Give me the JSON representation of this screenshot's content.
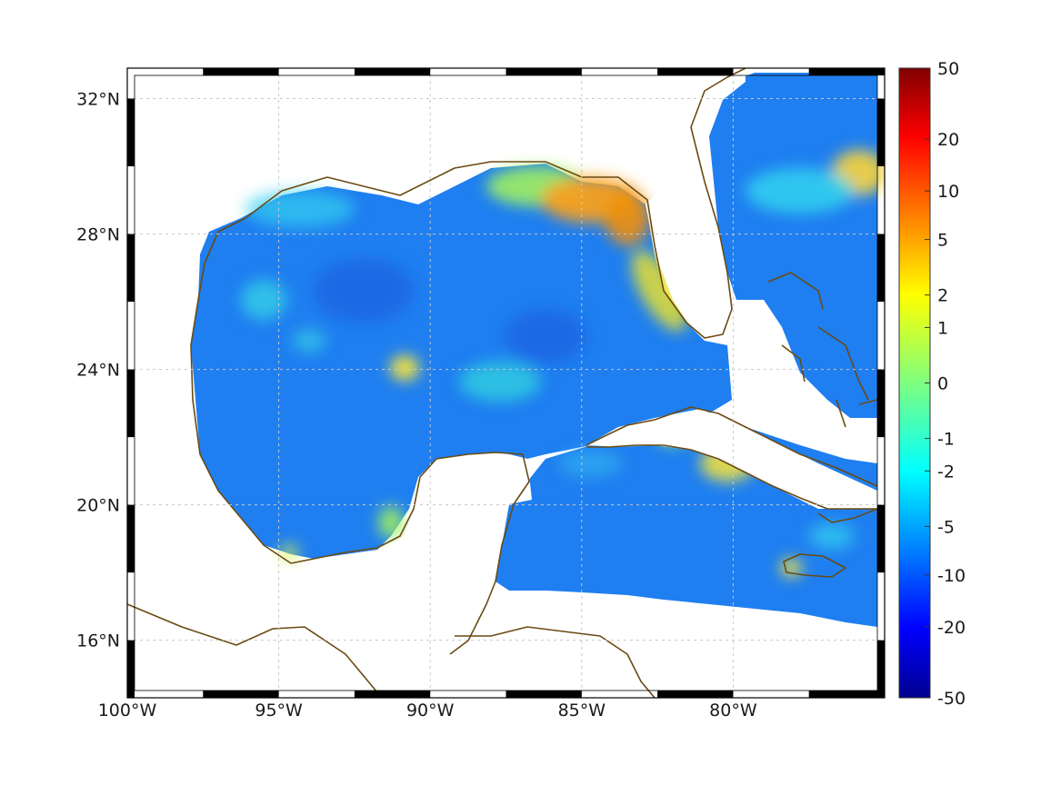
{
  "map": {
    "region": "Gulf of Mexico and Caribbean",
    "lon_range": [
      -100,
      -75
    ],
    "lat_range": [
      14.3,
      32.9
    ],
    "lon_ticks": [
      {
        "value": -100,
        "label": "100°W"
      },
      {
        "value": -95,
        "label": "95°W"
      },
      {
        "value": -90,
        "label": "90°W"
      },
      {
        "value": -85,
        "label": "85°W"
      },
      {
        "value": -80,
        "label": "80°W"
      }
    ],
    "lat_ticks": [
      {
        "value": 32,
        "label": "32°N"
      },
      {
        "value": 28,
        "label": "28°N"
      },
      {
        "value": 24,
        "label": "24°N"
      },
      {
        "value": 20,
        "label": "20°N"
      },
      {
        "value": 16,
        "label": "16°N"
      }
    ],
    "grid": true,
    "coast_color": "#6b4a12",
    "land_color": "#ffffff"
  },
  "colorbar": {
    "colormap": "jet",
    "ticks": [
      "50",
      "20",
      "10",
      "5",
      "2",
      "1",
      "0",
      "-1",
      "-2",
      "-5",
      "-10",
      "-20",
      "-50"
    ],
    "range": [
      -50,
      50
    ]
  },
  "field": {
    "description_note": "",
    "hotspots": [
      {
        "lon": -84.8,
        "lat": 29.5,
        "level": 0.78
      },
      {
        "lon": -82.9,
        "lat": 27.2,
        "level": 0.66
      },
      {
        "lon": -75.6,
        "lat": 30.0,
        "level": 0.68
      },
      {
        "lon": -90.6,
        "lat": 24.2,
        "level": 0.55
      },
      {
        "lon": -80.5,
        "lat": 21.6,
        "level": 0.56
      },
      {
        "lon": -78.2,
        "lat": 18.0,
        "level": 0.55
      }
    ]
  }
}
